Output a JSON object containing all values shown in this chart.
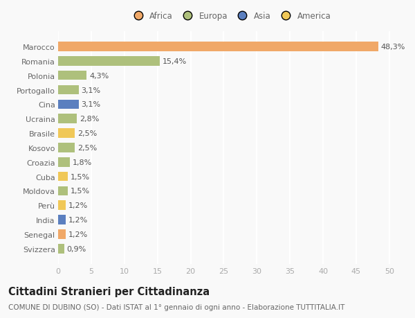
{
  "countries": [
    "Svizzera",
    "Senegal",
    "India",
    "Perù",
    "Moldova",
    "Cuba",
    "Croazia",
    "Kosovo",
    "Brasile",
    "Ucraina",
    "Cina",
    "Portogallo",
    "Polonia",
    "Romania",
    "Marocco"
  ],
  "values": [
    0.9,
    1.2,
    1.2,
    1.2,
    1.5,
    1.5,
    1.8,
    2.5,
    2.5,
    2.8,
    3.1,
    3.1,
    4.3,
    15.4,
    48.3
  ],
  "labels": [
    "0,9%",
    "1,2%",
    "1,2%",
    "1,2%",
    "1,5%",
    "1,5%",
    "1,8%",
    "2,5%",
    "2,5%",
    "2,8%",
    "3,1%",
    "3,1%",
    "4,3%",
    "15,4%",
    "48,3%"
  ],
  "continents": [
    "Europa",
    "Africa",
    "Asia",
    "America",
    "Europa",
    "America",
    "Europa",
    "Europa",
    "America",
    "Europa",
    "Asia",
    "Europa",
    "Europa",
    "Europa",
    "Africa"
  ],
  "continent_colors": {
    "Africa": "#f0a868",
    "Europa": "#aec07c",
    "Asia": "#5b7fbf",
    "America": "#f0c858"
  },
  "legend_order": [
    "Africa",
    "Europa",
    "Asia",
    "America"
  ],
  "xlim": [
    0,
    52
  ],
  "xticks": [
    0,
    5,
    10,
    15,
    20,
    25,
    30,
    35,
    40,
    45,
    50
  ],
  "title": "Cittadini Stranieri per Cittadinanza",
  "subtitle": "COMUNE DI DUBINO (SO) - Dati ISTAT al 1° gennaio di ogni anno - Elaborazione TUTTITALIA.IT",
  "background_color": "#f9f9f9",
  "grid_color": "#ffffff",
  "bar_height": 0.65,
  "label_fontsize": 8,
  "ytick_fontsize": 8,
  "xtick_fontsize": 8,
  "title_fontsize": 10.5,
  "subtitle_fontsize": 7.5
}
